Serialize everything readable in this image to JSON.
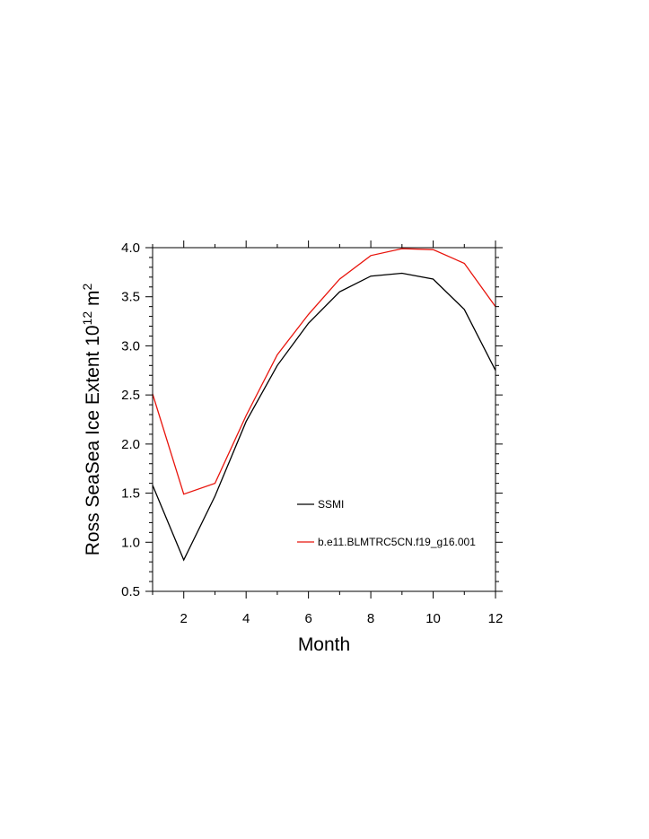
{
  "chart_data": {
    "type": "line",
    "title": "",
    "xlabel": "Month",
    "ylabel": "Ross SeaSea Ice Extent 10",
    "ylabel_exp": "12",
    "ylabel_unit": " m",
    "ylabel_unit_exp": "2",
    "xlim": [
      1,
      12
    ],
    "ylim": [
      0.5,
      4.0
    ],
    "xticks": [
      2,
      4,
      6,
      8,
      10,
      12
    ],
    "yticks": [
      0.5,
      1.0,
      1.5,
      2.0,
      2.5,
      3.0,
      3.5,
      4.0
    ],
    "ytick_labels": [
      "0.5",
      "1.0",
      "1.5",
      "2.0",
      "2.5",
      "3.0",
      "3.5",
      "4.0"
    ],
    "grid": false,
    "legend_position": "inside-center",
    "x": [
      1,
      2,
      3,
      4,
      5,
      6,
      7,
      8,
      9,
      10,
      11,
      12
    ],
    "series": [
      {
        "name": "SSMI",
        "color": "#000000",
        "values": [
          1.58,
          0.82,
          1.47,
          2.23,
          2.8,
          3.23,
          3.55,
          3.71,
          3.74,
          3.68,
          3.37,
          2.75
        ]
      },
      {
        "name": "b.e11.BLMTRC5CN.f19_g16.001",
        "color": "#e8140c",
        "values": [
          2.51,
          1.49,
          1.6,
          2.29,
          2.91,
          3.32,
          3.68,
          3.92,
          3.99,
          3.98,
          3.84,
          3.4
        ]
      }
    ]
  }
}
